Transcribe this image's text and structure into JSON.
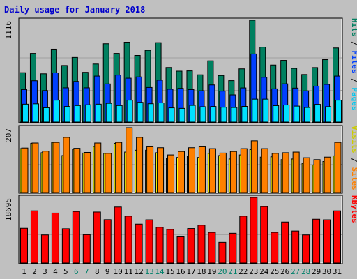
{
  "chart_data": {
    "type": "bar",
    "title": "Daily usage for January 2018",
    "categories": [
      "1",
      "2",
      "3",
      "4",
      "5",
      "6",
      "7",
      "8",
      "9",
      "10",
      "11",
      "12",
      "13",
      "14",
      "15",
      "16",
      "17",
      "18",
      "19",
      "20",
      "21",
      "22",
      "23",
      "24",
      "25",
      "26",
      "27",
      "28",
      "29",
      "30",
      "31"
    ],
    "weekend_days": [
      "6",
      "7",
      "13",
      "14",
      "20",
      "21",
      "27",
      "28"
    ],
    "panels": [
      {
        "name": "hits-files-pages",
        "ymax_label": "1116",
        "ylim": [
          0,
          1116
        ],
        "legend": [
          "Pages",
          "Files",
          "Hits"
        ],
        "legend_separator": " / ",
        "series": [
          {
            "name": "Hits",
            "color": "#008060",
            "values": [
              541,
              752,
              529,
              799,
              620,
              708,
              545,
              636,
              858,
              752,
              875,
              730,
              786,
              870,
              598,
              558,
              561,
              518,
              671,
              510,
              454,
              583,
              1116,
              821,
              625,
              676,
              588,
              521,
              597,
              684,
              812
            ]
          },
          {
            "name": "Files",
            "color": "#0040FF",
            "values": [
              356,
              453,
              345,
              539,
              375,
              445,
              375,
              504,
              418,
              515,
              481,
              495,
              379,
              459,
              360,
              369,
              356,
              343,
              407,
              339,
              298,
              374,
              746,
              491,
              364,
              419,
              372,
              342,
              394,
              413,
              504
            ]
          },
          {
            "name": "Pages",
            "color": "#00E0FF",
            "values": [
              196,
              200,
              157,
              240,
              171,
              181,
              189,
              196,
              205,
              181,
              240,
              216,
              201,
              210,
              156,
              150,
              183,
              168,
              171,
              163,
              160,
              172,
              251,
              251,
              180,
              187,
              175,
              160,
              194,
              169,
              240
            ]
          }
        ]
      },
      {
        "name": "visits-sites",
        "ymax_label": "207",
        "ylim": [
          0,
          207
        ],
        "legend": [
          "Sites",
          "Visits"
        ],
        "legend_separator": " / ",
        "series": [
          {
            "name": "Visits",
            "color": "#FFFF00",
            "values": [
              140,
              157,
              127,
              160,
              118,
              138,
              126,
              147,
              125,
              157,
              129,
              135,
              135,
              127,
              108,
              112,
              115,
              112,
              125,
              118,
              107,
              120,
              137,
              113,
              114,
              105,
              107,
              93,
              88,
              99,
              117
            ]
          },
          {
            "name": "Sites",
            "color": "#FF8000",
            "values": [
              142,
              158,
              132,
              160,
              176,
              141,
              128,
              158,
              125,
              160,
              207,
              176,
              146,
              143,
              120,
              131,
              143,
              146,
              140,
              126,
              131,
              140,
              165,
              140,
              125,
              127,
              129,
              111,
              105,
              113,
              160
            ]
          }
        ]
      },
      {
        "name": "kbytes",
        "ymax_label": "18695",
        "ylim": [
          0,
          18695
        ],
        "legend": [
          "KBytes"
        ],
        "legend_separator": " / ",
        "series": [
          {
            "name": "KBytes",
            "color": "#FF0000",
            "values": [
              9896,
              14873,
              8011,
              14232,
              9767,
              14681,
              8088,
              14528,
              12359,
              15956,
              13355,
              11090,
              12318,
              10185,
              9575,
              7455,
              9831,
              10781,
              8738,
              5898,
              8485,
              13355,
              18695,
              16088,
              8738,
              11686,
              9121,
              8011,
              12478,
              12318,
              14873
            ]
          }
        ]
      }
    ],
    "colors": {
      "title": "#0000CC",
      "weekend_label": "#00806A",
      "weekday_label": "#000000",
      "plot_bg": "#C0C0C0",
      "gridline": "#A0A0A0",
      "legend_Hits": "#008060",
      "legend_Files": "#0040FF",
      "legend_Pages": "#00C8F0",
      "legend_Visits": "#CCCC00",
      "legend_Sites": "#FF8000",
      "legend_KBytes": "#FF0000"
    }
  }
}
